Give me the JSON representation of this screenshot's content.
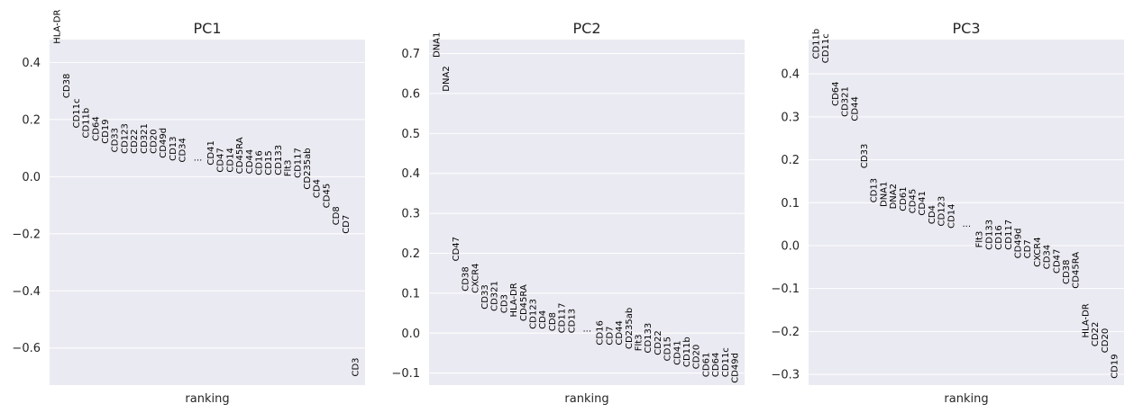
{
  "chart_data": [
    {
      "type": "scatter",
      "title": "PC1",
      "xlabel": "ranking",
      "ylabel": "",
      "ylim": [
        -0.73,
        0.48
      ],
      "yticks": [
        -0.6,
        -0.4,
        -0.2,
        0.0,
        0.2,
        0.4
      ],
      "ytick_labels": [
        "−0.6",
        "−0.4",
        "−0.2",
        "0.0",
        "0.2",
        "0.4"
      ],
      "grid": true,
      "ellipsis_after": 14,
      "points": [
        {
          "label": "HLA-DR",
          "value": 0.465
        },
        {
          "label": "CD38",
          "value": 0.275
        },
        {
          "label": "CD11c",
          "value": 0.17
        },
        {
          "label": "CD11b",
          "value": 0.135
        },
        {
          "label": "CD64",
          "value": 0.125
        },
        {
          "label": "CD19",
          "value": 0.115
        },
        {
          "label": "CD33",
          "value": 0.085
        },
        {
          "label": "CD123",
          "value": 0.08
        },
        {
          "label": "CD22",
          "value": 0.08
        },
        {
          "label": "CD321",
          "value": 0.08
        },
        {
          "label": "CD20",
          "value": 0.08
        },
        {
          "label": "CD49d",
          "value": 0.065
        },
        {
          "label": "CD13",
          "value": 0.055
        },
        {
          "label": "CD34",
          "value": 0.05
        },
        {
          "label": "CD41",
          "value": 0.04
        },
        {
          "label": "CD47",
          "value": 0.015
        },
        {
          "label": "CD14",
          "value": 0.015
        },
        {
          "label": "CD45RA",
          "value": 0.01
        },
        {
          "label": "CD44",
          "value": 0.01
        },
        {
          "label": "CD16",
          "value": 0.005
        },
        {
          "label": "CD15",
          "value": 0.005
        },
        {
          "label": "CD133",
          "value": 0.005
        },
        {
          "label": "Flt3",
          "value": 0.0
        },
        {
          "label": "CD117",
          "value": -0.005
        },
        {
          "label": "CD235ab",
          "value": -0.045
        },
        {
          "label": "CD4",
          "value": -0.075
        },
        {
          "label": "CD45",
          "value": -0.11
        },
        {
          "label": "CD8",
          "value": -0.17
        },
        {
          "label": "CD7",
          "value": -0.2
        },
        {
          "label": "CD3",
          "value": -0.7
        }
      ]
    },
    {
      "type": "scatter",
      "title": "PC2",
      "xlabel": "ranking",
      "ylabel": "",
      "ylim": [
        -0.13,
        0.735
      ],
      "yticks": [
        -0.1,
        0.0,
        0.1,
        0.2,
        0.3,
        0.4,
        0.5,
        0.6,
        0.7
      ],
      "ytick_labels": [
        "−0.1",
        "0.0",
        "0.1",
        "0.2",
        "0.3",
        "0.4",
        "0.5",
        "0.6",
        "0.7"
      ],
      "grid": true,
      "ellipsis_after": 15,
      "points": [
        {
          "label": "DNA1",
          "value": 0.69
        },
        {
          "label": "DNA2",
          "value": 0.605
        },
        {
          "label": "CD47",
          "value": 0.18
        },
        {
          "label": "CD38",
          "value": 0.105
        },
        {
          "label": "CXCR4",
          "value": 0.1
        },
        {
          "label": "CD33",
          "value": 0.06
        },
        {
          "label": "CD321",
          "value": 0.055
        },
        {
          "label": "CD3",
          "value": 0.05
        },
        {
          "label": "HLA-DR",
          "value": 0.04
        },
        {
          "label": "CD45RA",
          "value": 0.03
        },
        {
          "label": "CD123",
          "value": 0.01
        },
        {
          "label": "CD4",
          "value": 0.01
        },
        {
          "label": "CD8",
          "value": 0.005
        },
        {
          "label": "CD117",
          "value": 0.0
        },
        {
          "label": "CD13",
          "value": 0.0
        },
        {
          "label": "CD16",
          "value": -0.03
        },
        {
          "label": "CD7",
          "value": -0.03
        },
        {
          "label": "CD44",
          "value": -0.03
        },
        {
          "label": "CD235ab",
          "value": -0.04
        },
        {
          "label": "Flt3",
          "value": -0.045
        },
        {
          "label": "CD133",
          "value": -0.05
        },
        {
          "label": "CD22",
          "value": -0.055
        },
        {
          "label": "CD15",
          "value": -0.07
        },
        {
          "label": "CD41",
          "value": -0.08
        },
        {
          "label": "CD11b",
          "value": -0.085
        },
        {
          "label": "CD20",
          "value": -0.09
        },
        {
          "label": "CD61",
          "value": -0.11
        },
        {
          "label": "CD64",
          "value": -0.11
        },
        {
          "label": "CD11c",
          "value": -0.11
        },
        {
          "label": "CD49d",
          "value": -0.125
        }
      ]
    },
    {
      "type": "scatter",
      "title": "PC3",
      "xlabel": "ranking",
      "ylabel": "",
      "ylim": [
        -0.325,
        0.48
      ],
      "yticks": [
        -0.3,
        -0.2,
        -0.1,
        0.0,
        0.1,
        0.2,
        0.3,
        0.4
      ],
      "ytick_labels": [
        "−0.3",
        "−0.2",
        "−0.1",
        "0.0",
        "0.1",
        "0.2",
        "0.3",
        "0.4"
      ],
      "grid": true,
      "ellipsis_after": 15,
      "points": [
        {
          "label": "CD11b",
          "value": 0.435
        },
        {
          "label": "CD11c",
          "value": 0.425
        },
        {
          "label": "CD64",
          "value": 0.325
        },
        {
          "label": "CD321",
          "value": 0.3
        },
        {
          "label": "CD44",
          "value": 0.29
        },
        {
          "label": "CD33",
          "value": 0.18
        },
        {
          "label": "CD13",
          "value": 0.1
        },
        {
          "label": "DNA1",
          "value": 0.09
        },
        {
          "label": "DNA2",
          "value": 0.085
        },
        {
          "label": "CD61",
          "value": 0.08
        },
        {
          "label": "CD45",
          "value": 0.075
        },
        {
          "label": "CD41",
          "value": 0.07
        },
        {
          "label": "CD4",
          "value": 0.05
        },
        {
          "label": "CD123",
          "value": 0.045
        },
        {
          "label": "CD14",
          "value": 0.04
        },
        {
          "label": "Flt3",
          "value": -0.005
        },
        {
          "label": "CD133",
          "value": -0.01
        },
        {
          "label": "CD16",
          "value": -0.01
        },
        {
          "label": "CD117",
          "value": -0.01
        },
        {
          "label": "CD49d",
          "value": -0.03
        },
        {
          "label": "CD7",
          "value": -0.03
        },
        {
          "label": "CXCR4",
          "value": -0.05
        },
        {
          "label": "CD34",
          "value": -0.055
        },
        {
          "label": "CD47",
          "value": -0.065
        },
        {
          "label": "CD38",
          "value": -0.09
        },
        {
          "label": "CD45RA",
          "value": -0.1
        },
        {
          "label": "HLA-DR",
          "value": -0.215
        },
        {
          "label": "CD22",
          "value": -0.235
        },
        {
          "label": "CD20",
          "value": -0.25
        },
        {
          "label": "CD19",
          "value": -0.31
        }
      ]
    }
  ]
}
